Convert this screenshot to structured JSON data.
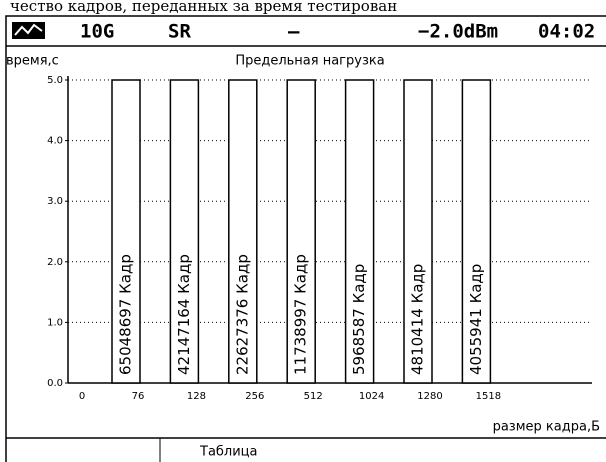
{
  "caption": "чество кадров, переданных за время тестирован",
  "status": {
    "port": "10G",
    "mode": "SR",
    "dash": "–",
    "power": "−2.0dBm",
    "time": "04:02"
  },
  "chart_data": {
    "type": "bar",
    "title": "Предельная нагрузка",
    "y_label": "время,с",
    "x_label": "размер кадра,Б",
    "x_origin_label": "0",
    "categories": [
      "76",
      "128",
      "256",
      "512",
      "1024",
      "1280",
      "1518"
    ],
    "values": [
      5,
      5,
      5,
      5,
      5,
      5,
      5
    ],
    "bar_labels": [
      "65048697 Кадр",
      "42147164 Кадр",
      "22627376 Кадр",
      "11738997 Кадр",
      "5968587 Кадр",
      "4810414 Кадр",
      "4055941 Кадр"
    ],
    "color": "#ffffff",
    "ylim": [
      0,
      5
    ],
    "yticks": [
      {
        "value": 0,
        "label": "0.0"
      },
      {
        "value": 1,
        "label": "1.0"
      },
      {
        "value": 2,
        "label": "2.0"
      },
      {
        "value": 3,
        "label": "3.0"
      },
      {
        "value": 4,
        "label": "4.0"
      },
      {
        "value": 5,
        "label": "5.0"
      }
    ],
    "grid": true
  },
  "footer": {
    "button": "Таблица"
  }
}
